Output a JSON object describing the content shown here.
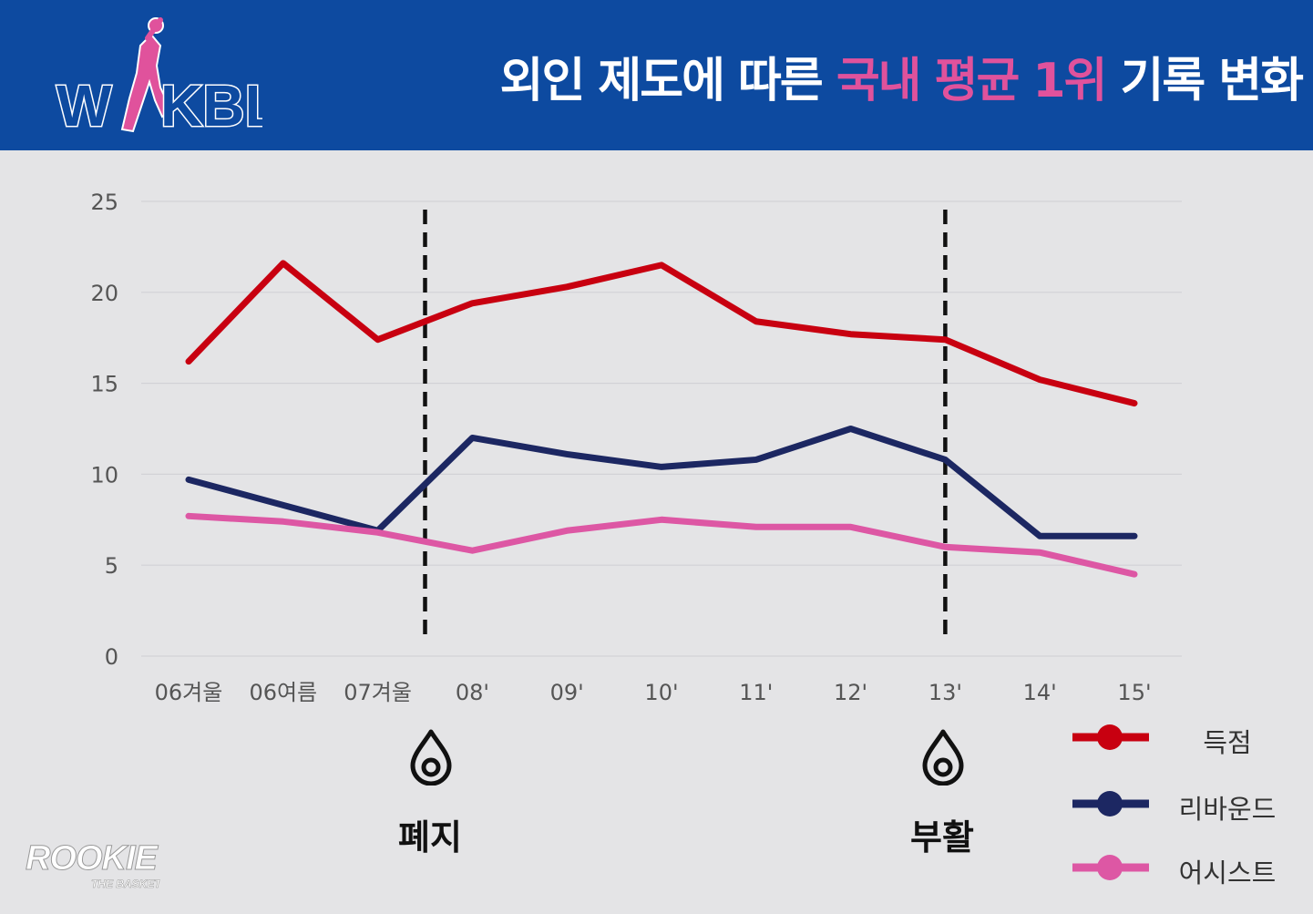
{
  "header": {
    "logo_text": "WKBL",
    "title_before": "외인 제도에 따른 ",
    "title_highlight": "국내 평균 1위",
    "title_after": " 기록 변화",
    "background_color": "#0d4aa0",
    "highlight_color": "#e0529c"
  },
  "chart_data": {
    "type": "line",
    "title": "외인 제도에 따른 국내 평균 1위 기록 변화",
    "categories": [
      "06겨울",
      "06여름",
      "07겨울",
      "08'",
      "09'",
      "10'",
      "11'",
      "12'",
      "13'",
      "14'",
      "15'"
    ],
    "ylim": [
      0,
      25
    ],
    "yticks": [
      0,
      5,
      10,
      15,
      20,
      25
    ],
    "grid": true,
    "legend_position": "bottom-right",
    "series": [
      {
        "name": "득점",
        "color": "#c80010",
        "values": [
          16.2,
          21.6,
          17.4,
          19.4,
          20.3,
          21.5,
          18.4,
          17.7,
          17.4,
          15.2,
          13.9
        ]
      },
      {
        "name": "리바운드",
        "color": "#1c2762",
        "values": [
          9.7,
          8.3,
          6.9,
          12.0,
          11.1,
          10.4,
          10.8,
          12.5,
          10.8,
          6.6,
          6.6
        ]
      },
      {
        "name": "어시스트",
        "color": "#dd57a4",
        "values": [
          7.7,
          7.4,
          6.8,
          5.8,
          6.9,
          7.5,
          7.1,
          7.1,
          6.0,
          5.7,
          4.5
        ]
      }
    ],
    "annotations": [
      {
        "label": "폐지",
        "between": [
          "07겨울",
          "08'"
        ]
      },
      {
        "label": "부활",
        "at": "13'"
      }
    ]
  },
  "footer": {
    "brand": "ROOKIE",
    "brand_sub": "THE BASKET"
  }
}
